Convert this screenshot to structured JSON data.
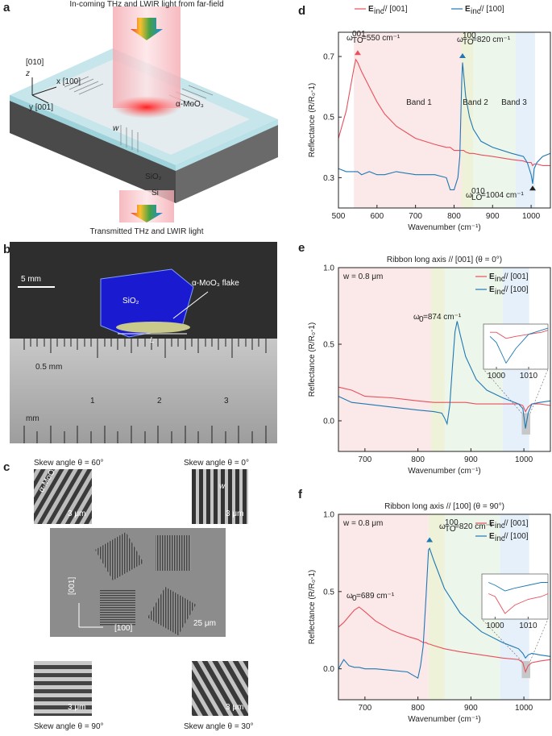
{
  "panel_labels": [
    "a",
    "b",
    "c",
    "d",
    "e",
    "f"
  ],
  "panel_a": {
    "incoming": "In-coming THz and LWIR light from far-field",
    "axis_010": "[010]",
    "z": "z",
    "x": "x [100]",
    "y": "y [001]",
    "material": "α-MoO₃",
    "w": "w",
    "sio2": "SiO₂",
    "si": "Si",
    "transmitted": "Transmitted THz and LWIR light"
  },
  "panel_b": {
    "scale": "5 mm",
    "sio2": "SiO₂",
    "flake": "α-MoO₃ flake",
    "L": "L",
    "ruler_unit": "0.5 mm",
    "ruler_numbers": [
      "1",
      "2",
      "3"
    ],
    "mm": "mm"
  },
  "panel_c": {
    "skew_60": "Skew angle θ = 60°",
    "skew_0": "Skew angle θ = 0°",
    "skew_90": "Skew angle θ = 90°",
    "skew_30": "Skew angle θ = 30°",
    "material": "α-MoO₃",
    "w": "w",
    "scale_small": [
      "3 μm",
      "3 μm",
      "3 μm",
      "3 μm"
    ],
    "scale_large": "25 μm",
    "axis_001": "[001]",
    "axis_100": "[100]"
  },
  "chart_data": [
    {
      "type": "line",
      "xlabel": "Wavenumber (cm⁻¹)",
      "ylabel": "Reflectance (R/R₀-1)",
      "xlim": [
        500,
        1050
      ],
      "ylim": [
        0.2,
        0.78
      ],
      "xticks": [
        500,
        600,
        700,
        800,
        900,
        1000
      ],
      "yticks": [
        0.3,
        0.5,
        0.7
      ],
      "bands": [
        {
          "from": 540,
          "to": 820,
          "color": "#fbe8e8"
        },
        {
          "from": 820,
          "to": 850,
          "color": "#eef2d8"
        },
        {
          "from": 850,
          "to": 960,
          "color": "#edf6ea"
        },
        {
          "from": 960,
          "to": 1010,
          "color": "#e6f0fa"
        }
      ],
      "text_annotations": [
        "Band 1",
        "Band 2",
        "Band 3"
      ],
      "x": [
        500,
        520,
        540,
        545,
        550,
        560,
        580,
        600,
        620,
        650,
        700,
        750,
        780,
        790,
        800,
        810,
        815,
        820,
        822,
        825,
        830,
        840,
        850,
        870,
        900,
        950,
        980,
        990,
        1000,
        1004,
        1008,
        1015,
        1030,
        1050
      ],
      "series": [
        {
          "name_prefix": "E",
          "name_sub": "inc",
          "name": "// [001]",
          "color": "#e8505b",
          "values": [
            0.43,
            0.52,
            0.66,
            0.69,
            0.68,
            0.65,
            0.6,
            0.55,
            0.51,
            0.47,
            0.43,
            0.41,
            0.4,
            0.4,
            0.39,
            0.39,
            0.39,
            0.39,
            0.39,
            0.39,
            0.385,
            0.38,
            0.38,
            0.375,
            0.37,
            0.36,
            0.355,
            0.35,
            0.35,
            0.34,
            0.345,
            0.345,
            0.34,
            0.34
          ]
        },
        {
          "name_prefix": "E",
          "name_sub": "inc",
          "name": "// [100]",
          "color": "#1f78b4",
          "values": [
            0.33,
            0.32,
            0.32,
            0.32,
            0.32,
            0.31,
            0.32,
            0.31,
            0.31,
            0.32,
            0.31,
            0.31,
            0.3,
            0.26,
            0.26,
            0.3,
            0.37,
            0.62,
            0.68,
            0.64,
            0.57,
            0.5,
            0.46,
            0.42,
            0.4,
            0.38,
            0.37,
            0.35,
            0.31,
            0.28,
            0.33,
            0.35,
            0.37,
            0.38
          ]
        }
      ],
      "annotations": [
        {
          "x": 550,
          "y": 0.705,
          "color": "#e8505b",
          "label": {
            "main": "ω",
            "sup": "001",
            "sub": "TO",
            "rest": "=550 cm⁻¹"
          }
        },
        {
          "x": 822,
          "y": 0.695,
          "color": "#1f78b4",
          "label": {
            "main": "ω",
            "sup": "100",
            "sub": "TO",
            "rest": "=820 cm⁻¹"
          }
        },
        {
          "x": 1004,
          "y": 0.258,
          "color": "#222222",
          "label": {
            "main": "ω",
            "sup": "010",
            "sub": "LO",
            "rest": "=1004 cm⁻¹"
          }
        }
      ]
    },
    {
      "type": "line",
      "title": "Ribbon long axis // [001] (θ = 0°)",
      "note": "w = 0.8 μm",
      "xlabel": "Wavenumber (cm⁻¹)",
      "ylabel": "Reflectance (R/R₀-1)",
      "xlim": [
        650,
        1050
      ],
      "ylim": [
        -0.2,
        1.0
      ],
      "xticks": [
        700,
        800,
        900,
        1000
      ],
      "yticks": [
        {
          "value": 0,
          "label": "0.0"
        },
        0.5,
        {
          "value": 1,
          "label": "1.0"
        }
      ],
      "bands": [
        {
          "from": 650,
          "to": 825,
          "color": "#fbe8e8"
        },
        {
          "from": 825,
          "to": 850,
          "color": "#eef2d8"
        },
        {
          "from": 850,
          "to": 960,
          "color": "#edf6ea"
        },
        {
          "from": 960,
          "to": 1010,
          "color": "#e6f0fa"
        }
      ],
      "zoom_box": {
        "x": [
          996,
          1012
        ],
        "y": [
          -0.09,
          0.05
        ]
      },
      "x": [
        650,
        675,
        700,
        750,
        800,
        830,
        845,
        850,
        855,
        860,
        865,
        870,
        874,
        880,
        890,
        910,
        930,
        960,
        990,
        998,
        1003,
        1008,
        1015,
        1030,
        1050
      ],
      "series": [
        {
          "name_prefix": "E",
          "name_sub": "inc",
          "name": "// [001]",
          "color": "#e8505b",
          "values": [
            0.22,
            0.2,
            0.16,
            0.15,
            0.13,
            0.12,
            0.12,
            0.12,
            0.12,
            0.12,
            0.12,
            0.12,
            0.12,
            0.12,
            0.12,
            0.11,
            0.11,
            0.11,
            0.11,
            0.1,
            0.06,
            0.09,
            0.11,
            0.11,
            0.1
          ]
        },
        {
          "name_prefix": "E",
          "name_sub": "inc",
          "name": "// [100]",
          "color": "#1f78b4",
          "values": [
            0.16,
            0.12,
            0.11,
            0.09,
            0.07,
            0.06,
            0.05,
            0.02,
            -0.02,
            0.1,
            0.35,
            0.58,
            0.65,
            0.56,
            0.42,
            0.27,
            0.2,
            0.15,
            0.11,
            0.08,
            -0.05,
            0.05,
            0.11,
            0.12,
            0.13
          ]
        }
      ],
      "annotations": [
        {
          "label": {
            "main": "ω",
            "sub": "0",
            "rest": " =874 cm⁻¹"
          }
        }
      ],
      "inset": {
        "xlim": [
          996,
          1016
        ],
        "ylim": [
          -0.08,
          0.14
        ],
        "xticks": [
          1000,
          1010
        ],
        "x": [
          998,
          1000,
          1003,
          1006,
          1010,
          1014,
          1016
        ],
        "series": [
          {
            "color": "#e8505b",
            "values": [
              0.1,
              0.1,
              0.07,
              0.08,
              0.09,
              0.1,
              0.11
            ]
          },
          {
            "color": "#1f78b4",
            "values": [
              0.08,
              0.05,
              -0.05,
              0.02,
              0.09,
              0.11,
              0.12
            ]
          }
        ]
      }
    },
    {
      "type": "line",
      "title": "Ribbon long axis // [100] (θ = 90°)",
      "note": "w = 0.8 μm",
      "xlabel": "Wavenumber (cm⁻¹)",
      "ylabel": "Reflectance (R/R₀-1)",
      "xlim": [
        650,
        1050
      ],
      "ylim": [
        -0.2,
        1.0
      ],
      "xticks": [
        700,
        800,
        900,
        1000
      ],
      "yticks": [
        {
          "value": 0,
          "label": "0.0"
        },
        0.5,
        {
          "value": 1,
          "label": "1.0"
        }
      ],
      "bands": [
        {
          "from": 650,
          "to": 820,
          "color": "#fbe8e8"
        },
        {
          "from": 820,
          "to": 850,
          "color": "#eef2d8"
        },
        {
          "from": 850,
          "to": 955,
          "color": "#edf6ea"
        },
        {
          "from": 955,
          "to": 1010,
          "color": "#e6f0fa"
        }
      ],
      "zoom_box": {
        "x": [
          996,
          1012
        ],
        "y": [
          -0.06,
          0.05
        ]
      },
      "x": [
        650,
        660,
        670,
        680,
        689,
        700,
        720,
        750,
        780,
        790,
        800,
        805,
        810,
        815,
        820,
        822,
        830,
        850,
        880,
        920,
        960,
        990,
        998,
        1003,
        1008,
        1015,
        1030,
        1050
      ],
      "series": [
        {
          "name_prefix": "E",
          "name_sub": "inc",
          "name": "// [001]",
          "color": "#e8505b",
          "values": [
            0.27,
            0.3,
            0.34,
            0.38,
            0.4,
            0.37,
            0.31,
            0.25,
            0.21,
            0.2,
            0.19,
            0.18,
            0.17,
            0.17,
            0.16,
            0.16,
            0.15,
            0.13,
            0.11,
            0.09,
            0.07,
            0.06,
            0.04,
            -0.02,
            0.02,
            0.04,
            0.05,
            0.06
          ]
        },
        {
          "name_prefix": "E",
          "name_sub": "inc",
          "name": "// [100]",
          "color": "#1f78b4",
          "values": [
            0.0,
            0.06,
            0.02,
            0.01,
            0.01,
            0.0,
            0.0,
            -0.01,
            -0.02,
            -0.04,
            -0.06,
            0.02,
            0.15,
            0.45,
            0.77,
            0.78,
            0.7,
            0.52,
            0.36,
            0.24,
            0.17,
            0.13,
            0.1,
            0.07,
            0.09,
            0.1,
            0.09,
            0.08
          ]
        }
      ],
      "annotations": [
        {
          "x": 822,
          "y": 0.82,
          "color": "#1f78b4",
          "label": {
            "main": "ω",
            "sup": "100",
            "sub": "TO",
            "rest": "=820 cm⁻¹"
          }
        },
        {
          "label": {
            "main": "ω",
            "sub": "0",
            "rest": " =689 cm⁻¹"
          }
        }
      ],
      "inset": {
        "xlim": [
          996,
          1016
        ],
        "ylim": [
          -0.04,
          0.12
        ],
        "xticks": [
          1000,
          1010
        ],
        "x": [
          998,
          1000,
          1003,
          1006,
          1010,
          1014,
          1016
        ],
        "series": [
          {
            "color": "#e8505b",
            "values": [
              0.05,
              0.04,
              -0.02,
              0.01,
              0.03,
              0.04,
              0.05
            ]
          },
          {
            "color": "#1f78b4",
            "values": [
              0.09,
              0.08,
              0.06,
              0.07,
              0.08,
              0.09,
              0.09
            ]
          }
        ]
      }
    }
  ]
}
